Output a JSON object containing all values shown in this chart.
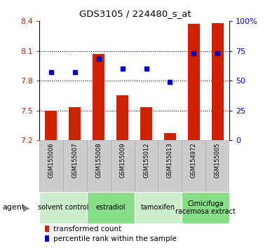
{
  "title": "GDS3105 / 224480_s_at",
  "samples": [
    "GSM155006",
    "GSM155007",
    "GSM155008",
    "GSM155009",
    "GSM155012",
    "GSM155013",
    "GSM154972",
    "GSM155005"
  ],
  "red_values": [
    7.5,
    7.53,
    8.07,
    7.65,
    7.53,
    7.27,
    8.37,
    8.38
  ],
  "blue_values": [
    57,
    57,
    68,
    60,
    60,
    49,
    73,
    73
  ],
  "ymin": 7.2,
  "ymax": 8.4,
  "yticks_left": [
    7.2,
    7.5,
    7.8,
    8.1,
    8.4
  ],
  "yticks_right": [
    0,
    25,
    50,
    75,
    100
  ],
  "agent_groups": [
    {
      "label": "solvent control",
      "start": 0,
      "end": 2,
      "color": "#cceecc"
    },
    {
      "label": "estradiol",
      "start": 2,
      "end": 4,
      "color": "#88dd88"
    },
    {
      "label": "tamoxifen",
      "start": 4,
      "end": 6,
      "color": "#cceecc"
    },
    {
      "label": "Cimicifuga\nracemosa extract",
      "start": 6,
      "end": 8,
      "color": "#88dd88"
    }
  ],
  "bar_color": "#cc2200",
  "dot_color": "#0000cc",
  "plot_bg": "#ffffff",
  "left_tick_color": "#cc2200",
  "right_tick_color": "#0000cc",
  "grid_yticks": [
    7.5,
    7.8,
    8.1
  ],
  "sample_box_color": "#cccccc",
  "sample_box_edge": "#aaaaaa",
  "agent_text_fontsize": 7,
  "sample_text_fontsize": 6
}
